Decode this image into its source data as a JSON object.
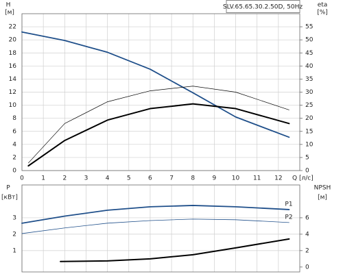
{
  "chart_data": [
    {
      "type": "line",
      "title": "SLV.65.65.30.2.50D, 50Hz",
      "y_label": "H",
      "y_unit": "[м]",
      "y2_label": "eta",
      "y2_unit": "[%]",
      "x_label": "Q [л/с]",
      "xlim": [
        0,
        13
      ],
      "xticks": [
        0,
        1,
        2,
        3,
        4,
        5,
        6,
        7,
        8,
        9,
        10,
        11,
        12
      ],
      "show_xtick_labels": true,
      "ylim": [
        0,
        24
      ],
      "yticks": [
        0,
        2,
        4,
        6,
        8,
        10,
        12,
        14,
        16,
        18,
        20,
        22
      ],
      "y2lim": [
        0,
        60
      ],
      "y2ticks": [
        0,
        5,
        10,
        15,
        20,
        25,
        30,
        35,
        40,
        45,
        50,
        55
      ],
      "grid": true,
      "series": [
        {
          "color": "#1f4f8a",
          "width": 1.8,
          "axis": "y",
          "x": [
            0,
            2,
            4,
            6,
            8,
            10,
            12.5
          ],
          "values": [
            21.2,
            19.9,
            18.1,
            15.5,
            11.9,
            8.2,
            5.1
          ]
        },
        {
          "color": "#000000",
          "width": 0.7,
          "axis": "y2",
          "x": [
            0.3,
            2,
            4,
            6,
            8,
            10,
            12.5
          ],
          "values": [
            2.9,
            18,
            26.3,
            30.5,
            32.3,
            30,
            23.2
          ]
        },
        {
          "color": "#000000",
          "width": 2,
          "axis": "y2",
          "x": [
            0.3,
            2,
            4,
            6,
            8,
            10,
            12.5
          ],
          "values": [
            1.8,
            11.5,
            19.3,
            23.7,
            25.5,
            23.7,
            18
          ]
        }
      ]
    },
    {
      "type": "line",
      "y_label": "P",
      "y_unit": "[кВт]",
      "y2_label": "NPSH",
      "y2_unit": "[м]",
      "xlim": [
        0,
        13
      ],
      "xticks": [
        0,
        1,
        2,
        3,
        4,
        5,
        6,
        7,
        8,
        9,
        10,
        11,
        12
      ],
      "show_xtick_labels": false,
      "ylim": [
        -0.3,
        5
      ],
      "yticks": [
        1,
        2,
        3
      ],
      "y2lim": [
        -0.6,
        10
      ],
      "y2ticks": [
        0,
        2,
        4,
        6
      ],
      "grid": true,
      "series": [
        {
          "name": "P1",
          "color": "#1f4f8a",
          "width": 1.8,
          "axis": "y",
          "x": [
            0,
            2,
            4,
            6,
            8,
            10,
            12.5
          ],
          "values": [
            2.67,
            3.1,
            3.46,
            3.67,
            3.75,
            3.67,
            3.5
          ]
        },
        {
          "name": "P2",
          "color": "#1f4f8a",
          "width": 0.8,
          "axis": "y",
          "x": [
            0,
            2,
            4,
            6,
            8,
            10,
            12.5
          ],
          "values": [
            2.04,
            2.38,
            2.67,
            2.83,
            2.92,
            2.88,
            2.71
          ]
        },
        {
          "color": "#000000",
          "width": 2,
          "axis": "y2",
          "x": [
            1.8,
            4,
            6,
            8,
            10,
            12.5
          ],
          "values": [
            0.67,
            0.75,
            1.0,
            1.5,
            2.33,
            3.42
          ]
        }
      ]
    }
  ]
}
